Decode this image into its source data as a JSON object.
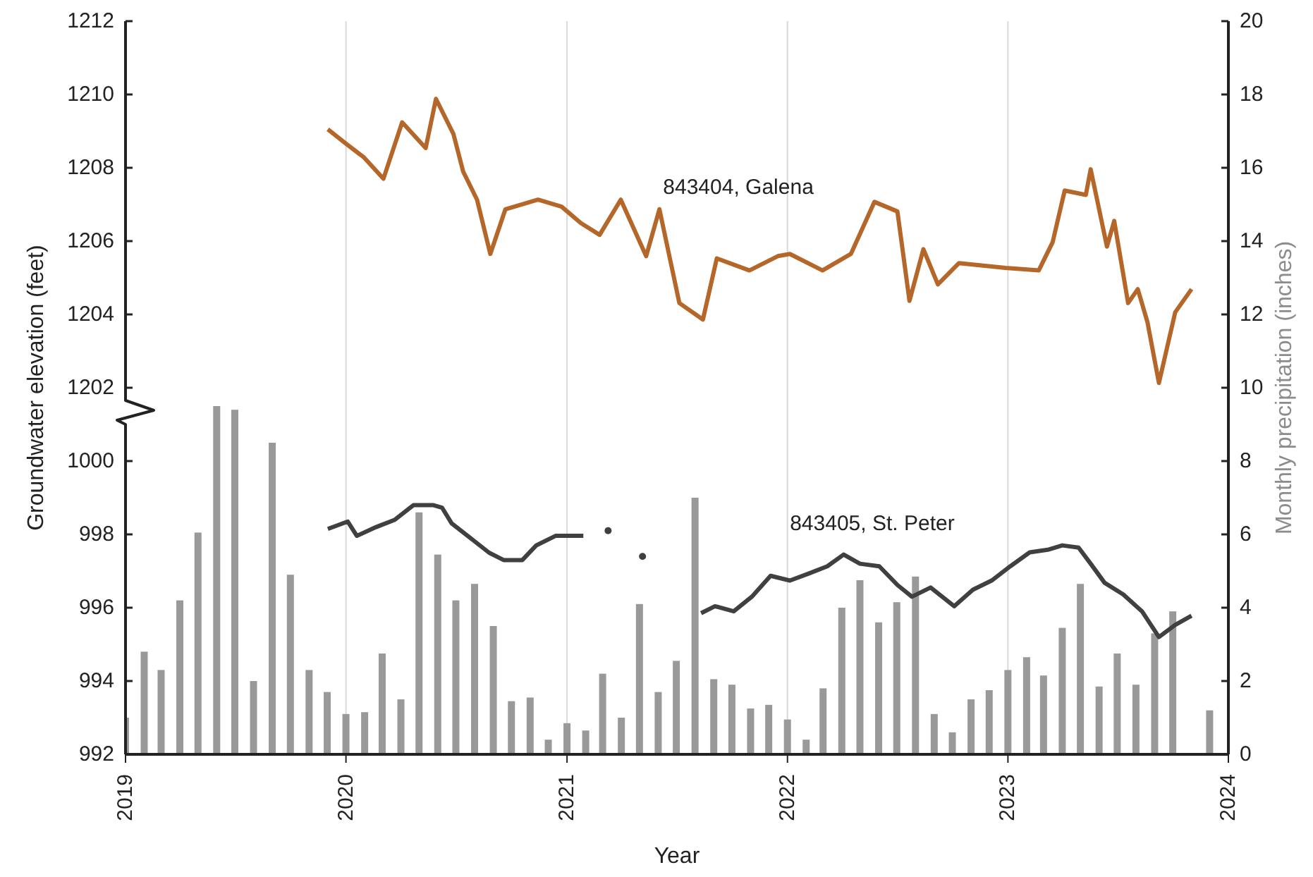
{
  "chart_data": {
    "type": "line",
    "xlabel": "Year",
    "ylabel": "Groundwater elevation (feet)",
    "y2label": "Monthly precipitation (inches)",
    "xlim": [
      "2019",
      "2024"
    ],
    "xticks": [
      "2019",
      "2020",
      "2021",
      "2022",
      "2023",
      "2024"
    ],
    "ylim": [
      992,
      1012
    ],
    "yticks": [
      992,
      994,
      996,
      998,
      1000
    ],
    "y3lim": [
      1192,
      1212
    ],
    "y3ticks": [
      1202,
      1204,
      1206,
      1208,
      1210,
      1212
    ],
    "y2lim": [
      0,
      20
    ],
    "y2ticks": [
      0,
      2,
      4,
      6,
      8,
      10,
      12,
      14,
      16,
      18,
      20
    ],
    "grid": "x",
    "series": [
      {
        "type": "bar",
        "axis": "y2",
        "color": "#999999",
        "x": [
          "2019-01",
          "2019-02",
          "2019-03",
          "2019-04",
          "2019-05",
          "2019-06",
          "2019-07",
          "2019-08",
          "2019-09",
          "2019-10",
          "2019-11",
          "2019-12",
          "2020-01",
          "2020-02",
          "2020-03",
          "2020-04",
          "2020-05",
          "2020-06",
          "2020-07",
          "2020-08",
          "2020-09",
          "2020-10",
          "2020-11",
          "2020-12",
          "2021-01",
          "2021-02",
          "2021-03",
          "2021-04",
          "2021-05",
          "2021-06",
          "2021-07",
          "2021-08",
          "2021-09",
          "2021-10",
          "2021-11",
          "2021-12",
          "2022-01",
          "2022-02",
          "2022-03",
          "2022-04",
          "2022-05",
          "2022-06",
          "2022-07",
          "2022-08",
          "2022-09",
          "2022-10",
          "2022-11",
          "2022-12",
          "2023-01",
          "2023-02",
          "2023-03",
          "2023-04",
          "2023-05",
          "2023-06",
          "2023-07",
          "2023-08",
          "2023-09",
          "2023-10",
          "2023-11",
          "2023-12"
        ],
        "values": [
          1.0,
          2.8,
          2.3,
          4.2,
          6.05,
          9.5,
          9.4,
          2.0,
          8.5,
          4.9,
          2.3,
          1.7,
          1.1,
          1.15,
          2.75,
          1.5,
          6.6,
          5.45,
          4.2,
          4.65,
          3.5,
          1.45,
          1.55,
          0.4,
          0.85,
          0.65,
          2.2,
          1.0,
          4.1,
          1.7,
          2.55,
          7.0,
          2.05,
          1.9,
          1.25,
          1.35,
          0.95,
          0.4,
          1.8,
          4.0,
          4.75,
          3.6,
          4.15,
          4.85,
          1.1,
          0.6,
          1.5,
          1.75,
          2.3,
          2.65,
          2.15,
          3.45,
          4.65,
          1.85,
          2.75,
          1.9,
          3.3,
          3.9,
          null,
          1.2
        ]
      },
      {
        "axis": "y3",
        "name": "843404, Galena",
        "color": "#b5672a",
        "x": [
          "2019-12-02",
          "2019-12-31",
          "2020-01-31",
          "2020-03-03",
          "2020-04-03",
          "2020-05-12",
          "2020-05-29",
          "2020-06-27",
          "2020-07-13",
          "2020-08-05",
          "2020-08-27",
          "2020-09-21",
          "2020-11-14",
          "2020-12-23",
          "2021-01-24",
          "2021-02-24",
          "2021-03-31",
          "2021-05-12",
          "2021-06-03",
          "2021-07-06",
          "2021-08-14",
          "2021-09-06",
          "2021-10-30",
          "2021-12-16",
          "2022-01-05",
          "2022-02-28",
          "2022-04-16",
          "2022-05-25",
          "2022-07-02",
          "2022-07-22",
          "2022-08-14",
          "2022-09-07",
          "2022-10-12",
          "2022-12-28",
          "2023-02-21",
          "2023-03-16",
          "2023-04-05",
          "2023-05-10",
          "2023-05-18",
          "2023-06-14",
          "2023-06-26",
          "2023-07-19",
          "2023-08-04",
          "2023-08-20",
          "2023-09-08",
          "2023-10-05",
          "2023-11-01"
        ],
        "values": [
          1209.05,
          1208.67,
          1208.28,
          1207.7,
          1209.24,
          1208.54,
          1209.88,
          1208.92,
          1207.9,
          1207.13,
          1205.65,
          1206.87,
          1207.13,
          1206.94,
          1206.49,
          1206.17,
          1207.13,
          1205.59,
          1206.87,
          1204.31,
          1203.86,
          1205.53,
          1205.2,
          1205.59,
          1205.65,
          1205.2,
          1205.65,
          1207.07,
          1206.81,
          1204.37,
          1205.78,
          1204.82,
          1205.4,
          1205.27,
          1205.2,
          1205.97,
          1207.38,
          1207.26,
          1207.96,
          1205.85,
          1206.55,
          1204.31,
          1204.69,
          1203.79,
          1202.13,
          1204.06,
          1204.69
        ]
      },
      {
        "name": "843405, St. Peter",
        "color": "#404040",
        "x": [
          "2019-12-02",
          "2020-01-04",
          "2020-01-19",
          "2020-02-20",
          "2020-03-22",
          "2020-04-22",
          "2020-05-24",
          "2020-06-08",
          "2020-06-24",
          "2020-07-25",
          "2020-08-25",
          "2020-09-18",
          "2020-10-19",
          "2020-11-11",
          "2020-12-13",
          "2021-01-28",
          "2021-02-15",
          "2021-03-10",
          "2021-04-05",
          "2021-05-06",
          "2021-06-15",
          "2021-08-11",
          "2021-09-03",
          "2021-10-04",
          "2021-11-03",
          "2021-12-04",
          "2022-01-05",
          "2022-02-05",
          "2022-03-08",
          "2022-04-04",
          "2022-05-01",
          "2022-06-02",
          "2022-07-02",
          "2022-07-26",
          "2022-08-26",
          "2022-10-04",
          "2022-11-04",
          "2022-12-05",
          "2023-01-05",
          "2023-02-06",
          "2023-03-08",
          "2023-04-01",
          "2023-04-28",
          "2023-05-18",
          "2023-06-10",
          "2023-07-11",
          "2023-08-11",
          "2023-09-08",
          "2023-10-05",
          "2023-11-01"
        ],
        "values": [
          998.15,
          998.35,
          997.96,
          998.2,
          998.4,
          998.8,
          998.8,
          998.73,
          998.3,
          997.9,
          997.5,
          997.3,
          997.3,
          997.7,
          997.96,
          997.96,
          null,
          998.1,
          null,
          997.4,
          null,
          995.85,
          996.04,
          995.9,
          996.3,
          996.87,
          996.74,
          996.93,
          997.13,
          997.45,
          997.2,
          997.13,
          996.62,
          996.3,
          996.55,
          996.04,
          996.49,
          996.74,
          997.13,
          997.51,
          997.58,
          997.7,
          997.64,
          997.2,
          996.68,
          996.36,
          995.9,
          995.2,
          995.53,
          995.78
        ]
      }
    ]
  }
}
